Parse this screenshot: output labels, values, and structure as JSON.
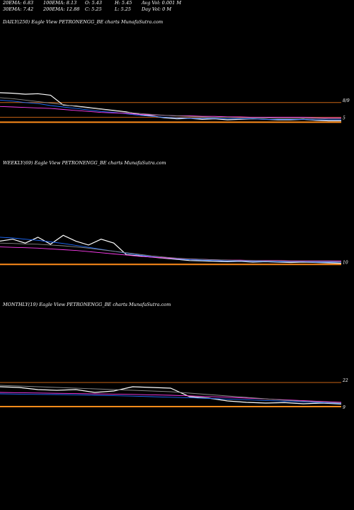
{
  "header": {
    "ema20": "20EMA: 6.83",
    "ema30": "30EMA: 7.42",
    "ema100": "100EMA: 8.13",
    "ema200": "200EMA: 12.88",
    "open": "O: 5.43",
    "close": "C: 5.25",
    "high": "H: 5.45",
    "low": "L: 5.25",
    "avg_vol": "Avg Vol: 0.001 M",
    "day_vol": "Day Vol: 0  M"
  },
  "colors": {
    "background": "#000000",
    "price": "#ffffff",
    "ema_fast": "#1e6cff",
    "ema_mid": "#ff3df0",
    "ema_slow": "#8a8a8a",
    "accent": "#ff8c1a",
    "level": "#c86414"
  },
  "chart_data": [
    {
      "type": "line",
      "title": "DAILY(250) Eagle   View  PETRONENGG_BE charts MunafaSutra.com",
      "ylim": [
        4.5,
        12
      ],
      "levels": [
        9,
        6,
        5
      ],
      "tick_labels": [
        "8/9",
        "5"
      ],
      "series": [
        {
          "color_key": "price",
          "values": [
            11.0,
            10.9,
            10.7,
            10.8,
            10.5,
            8.5,
            8.3,
            8.0,
            7.7,
            7.4,
            7.1,
            6.6,
            6.3,
            5.9,
            5.7,
            5.8,
            5.6,
            5.7,
            5.5,
            5.6,
            5.7,
            5.6,
            5.5,
            5.5,
            5.6,
            5.4,
            5.3,
            5.3
          ]
        },
        {
          "color_key": "ema_fast",
          "values": [
            9.5,
            9.3,
            9.0,
            8.8,
            8.4,
            8.1,
            7.8,
            7.5,
            7.2,
            7.0,
            6.7,
            6.4,
            6.2,
            6.0,
            5.9,
            5.8,
            5.8,
            5.8,
            5.7,
            5.7,
            5.7,
            5.6,
            5.6,
            5.6,
            5.6,
            5.5,
            5.5,
            5.5
          ]
        },
        {
          "color_key": "ema_mid",
          "values": [
            8.2,
            8.1,
            8.0,
            7.9,
            7.8,
            7.6,
            7.4,
            7.2,
            7.0,
            6.9,
            6.8,
            6.6,
            6.5,
            6.4,
            6.3,
            6.3,
            6.2,
            6.2,
            6.1,
            6.1,
            6.0,
            6.0,
            6.0,
            6.0,
            6.0,
            5.9,
            5.9,
            5.9
          ]
        },
        {
          "color_key": "ema_slow",
          "values": [
            10.0,
            9.8,
            9.5,
            9.2,
            8.9,
            8.6,
            8.2,
            7.9,
            7.6,
            7.3,
            7.0,
            6.8,
            6.6,
            6.4,
            6.3,
            6.2,
            6.1,
            6.0,
            6.0,
            5.9,
            5.9,
            5.9,
            5.8,
            5.8,
            5.8,
            5.8,
            5.7,
            5.7
          ]
        }
      ]
    },
    {
      "type": "line",
      "title": "WEEKLY(69) Eagle   View  PETRONENGG_BE charts MunafaSutra.com",
      "ylim": [
        4.5,
        14
      ],
      "levels": [
        5
      ],
      "tick_labels": [
        "10"
      ],
      "series": [
        {
          "color_key": "price",
          "values": [
            11.0,
            11.5,
            10.5,
            12.0,
            10.2,
            12.5,
            11.0,
            10.0,
            11.5,
            10.5,
            7.5,
            7.2,
            6.9,
            6.6,
            6.3,
            6.0,
            5.9,
            5.8,
            5.7,
            5.8,
            5.6,
            5.7,
            5.6,
            5.5,
            5.6,
            5.5,
            5.4,
            5.3
          ]
        },
        {
          "color_key": "ema_fast",
          "values": [
            12.0,
            11.8,
            11.5,
            11.2,
            10.8,
            10.4,
            9.9,
            9.4,
            8.9,
            8.4,
            7.9,
            7.4,
            7.0,
            6.7,
            6.4,
            6.2,
            6.1,
            6.0,
            5.9,
            5.9,
            5.8,
            5.8,
            5.7,
            5.7,
            5.7,
            5.6,
            5.6,
            5.6
          ]
        },
        {
          "color_key": "ema_mid",
          "values": [
            9.5,
            9.4,
            9.3,
            9.2,
            9.0,
            8.8,
            8.6,
            8.3,
            8.0,
            7.7,
            7.4,
            7.1,
            6.9,
            6.7,
            6.5,
            6.4,
            6.3,
            6.2,
            6.1,
            6.1,
            6.0,
            6.0,
            6.0,
            5.9,
            5.9,
            5.9,
            5.9,
            5.9
          ]
        },
        {
          "color_key": "ema_slow",
          "values": [
            10.5,
            10.4,
            10.3,
            10.2,
            10.0,
            9.8,
            9.5,
            9.2,
            8.8,
            8.4,
            8.0,
            7.6,
            7.2,
            6.9,
            6.6,
            6.4,
            6.3,
            6.2,
            6.1,
            6.0,
            6.0,
            5.9,
            5.9,
            5.8,
            5.8,
            5.8,
            5.8,
            5.7
          ]
        }
      ]
    },
    {
      "type": "line",
      "title": "MONTHLY(19) Eagle   View  PETRONENGG_BE charts MunafaSutra.com",
      "ylim": [
        4,
        30
      ],
      "levels": [
        22,
        5
      ],
      "tick_labels": [
        "22",
        "9"
      ],
      "series": [
        {
          "color_key": "price",
          "values": [
            19.0,
            18.5,
            17.0,
            16.5,
            17.0,
            15.0,
            16.0,
            19.0,
            18.5,
            18.0,
            12.0,
            11.0,
            9.0,
            8.0,
            7.5,
            7.8,
            7.0,
            7.5,
            6.8
          ]
        },
        {
          "color_key": "ema_fast",
          "values": [
            14.0,
            13.8,
            13.6,
            13.5,
            13.3,
            13.0,
            12.7,
            12.4,
            12.0,
            11.6,
            11.2,
            10.8,
            10.3,
            9.8,
            9.3,
            8.8,
            8.3,
            7.8,
            7.3
          ]
        },
        {
          "color_key": "ema_mid",
          "values": [
            15.0,
            14.8,
            14.6,
            14.4,
            14.2,
            14.0,
            13.8,
            13.6,
            13.3,
            13.0,
            12.6,
            12.1,
            11.6,
            11.0,
            10.4,
            9.8,
            9.2,
            8.6,
            8.0
          ]
        },
        {
          "color_key": "ema_slow",
          "values": [
            20.0,
            19.5,
            19.0,
            18.5,
            18.0,
            17.5,
            17.0,
            16.5,
            16.0,
            15.5,
            14.5,
            13.5,
            12.5,
            11.5,
            10.5,
            9.5,
            8.8,
            8.2,
            7.6
          ]
        }
      ]
    }
  ]
}
